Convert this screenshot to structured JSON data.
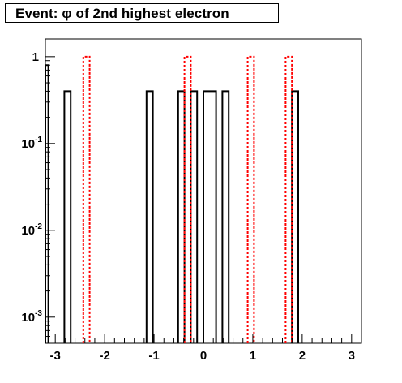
{
  "title": "Event: φ of 2nd highest electron",
  "chart_data": {
    "type": "histogram",
    "title": "Event: φ of 2nd highest electron",
    "xlabel": "",
    "ylabel": "",
    "xlim": [
      -3.2,
      3.2
    ],
    "ylim": [
      0.0005,
      1.6
    ],
    "y_scale": "log",
    "grid": false,
    "bin_width": 0.128,
    "x_ticks": [
      "-3",
      "-2",
      "-1",
      "0",
      "1",
      "2",
      "3"
    ],
    "x_tick_values": [
      -3,
      -2,
      -1,
      0,
      1,
      2,
      3
    ],
    "y_ticks": [
      {
        "base": "10",
        "exp": "-3",
        "value": 0.001
      },
      {
        "base": "10",
        "exp": "-2",
        "value": 0.01
      },
      {
        "base": "10",
        "exp": "-1",
        "value": 0.1
      },
      {
        "base": "1",
        "exp": "",
        "value": 1
      }
    ],
    "series": [
      {
        "style": "solid",
        "color": "#000000",
        "bins": [
          {
            "x0": -3.2,
            "x1": -3.14,
            "y": 0.8
          },
          {
            "x0": -2.816,
            "x1": -2.688,
            "y": 0.4
          },
          {
            "x0": -1.152,
            "x1": -1.024,
            "y": 0.4
          },
          {
            "x0": -0.512,
            "x1": -0.384,
            "y": 0.4
          },
          {
            "x0": -0.256,
            "x1": -0.128,
            "y": 0.4
          },
          {
            "x0": 0.0,
            "x1": 0.256,
            "y": 0.4
          },
          {
            "x0": 0.384,
            "x1": 0.512,
            "y": 0.4
          },
          {
            "x0": 1.792,
            "x1": 1.92,
            "y": 0.4
          }
        ]
      },
      {
        "style": "dashed",
        "color": "#ff0000",
        "bins": [
          {
            "x0": -2.432,
            "x1": -2.304,
            "y": 1.0
          },
          {
            "x0": -0.384,
            "x1": -0.256,
            "y": 1.0
          },
          {
            "x0": 0.896,
            "x1": 1.024,
            "y": 1.0
          },
          {
            "x0": 1.664,
            "x1": 1.792,
            "y": 1.0
          }
        ]
      }
    ]
  }
}
